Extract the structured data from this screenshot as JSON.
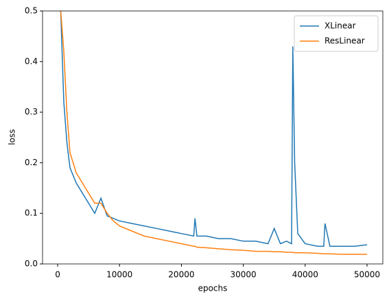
{
  "chart_data": {
    "type": "line",
    "xlabel": "epochs",
    "ylabel": "loss",
    "x": [
      500,
      1000,
      1500,
      2000,
      3000,
      4000,
      5000,
      6000,
      7000,
      8000,
      9000,
      10000,
      12000,
      14000,
      16000,
      18000,
      20000,
      22000,
      22200,
      22500,
      24000,
      26000,
      28000,
      30000,
      32000,
      34000,
      35000,
      36000,
      37000,
      37800,
      38000,
      38300,
      38800,
      40000,
      42000,
      43000,
      43200,
      44000,
      46000,
      48000,
      50000
    ],
    "series": [
      {
        "name": "XLinear",
        "color": "#1f77b4",
        "values": [
          0.5,
          0.32,
          0.24,
          0.19,
          0.16,
          0.14,
          0.12,
          0.1,
          0.13,
          0.095,
          0.09,
          0.085,
          0.08,
          0.075,
          0.07,
          0.065,
          0.06,
          0.055,
          0.09,
          0.055,
          0.055,
          0.05,
          0.05,
          0.045,
          0.045,
          0.04,
          0.07,
          0.04,
          0.045,
          0.04,
          0.43,
          0.2,
          0.06,
          0.04,
          0.035,
          0.035,
          0.08,
          0.035,
          0.035,
          0.035,
          0.038
        ]
      },
      {
        "name": "ResLinear",
        "color": "#ff7f0e",
        "values": [
          0.5,
          0.42,
          0.3,
          0.22,
          0.18,
          0.16,
          0.14,
          0.12,
          0.12,
          0.1,
          0.085,
          0.075,
          0.065,
          0.055,
          0.05,
          0.045,
          0.04,
          0.035,
          0.035,
          0.033,
          0.032,
          0.03,
          0.028,
          0.027,
          0.025,
          0.025,
          0.024,
          0.024,
          0.023,
          0.023,
          0.023,
          0.022,
          0.022,
          0.022,
          0.021,
          0.02,
          0.02,
          0.02,
          0.019,
          0.019,
          0.019
        ]
      }
    ],
    "xlim": [
      -2440,
      52550
    ],
    "xticks": [
      0,
      10000,
      20000,
      30000,
      40000,
      50000
    ],
    "ylim": [
      0,
      0.5
    ],
    "yticks": [
      {
        "value": 0,
        "label": "0.0"
      },
      0.1,
      0.2,
      0.3,
      0.4,
      0.5
    ],
    "legend": "upper right",
    "grid": false
  }
}
